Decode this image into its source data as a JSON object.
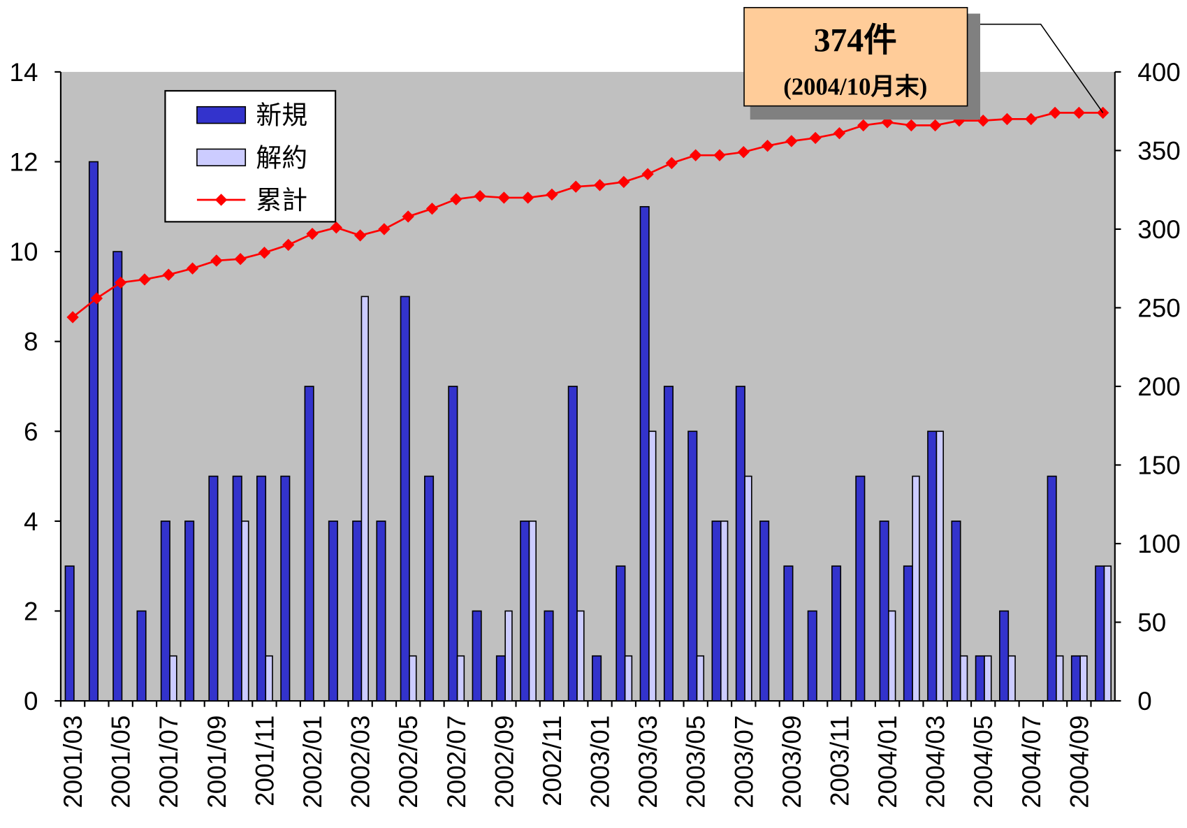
{
  "chart_data": {
    "type": "bar_line",
    "categories": [
      "2001/03",
      null,
      "2001/05",
      null,
      "2001/07",
      null,
      "2001/09",
      null,
      "2001/11",
      null,
      "2002/01",
      null,
      "2002/03",
      null,
      "2002/05",
      null,
      "2002/07",
      null,
      "2002/09",
      null,
      "2002/11",
      null,
      "2003/01",
      null,
      "2003/03",
      null,
      "2003/05",
      null,
      "2003/07",
      null,
      "2003/09",
      null,
      "2003/11",
      null,
      "2004/01",
      null,
      "2004/03",
      null,
      "2004/05",
      null,
      "2004/07",
      null,
      "2004/09",
      null
    ],
    "series": [
      {
        "name": "新規",
        "color": "#3333cc",
        "type": "bar",
        "values": [
          3,
          12,
          10,
          2,
          4,
          4,
          5,
          5,
          5,
          5,
          7,
          4,
          4,
          4,
          9,
          5,
          7,
          2,
          1,
          4,
          2,
          7,
          1,
          3,
          11,
          7,
          6,
          4,
          7,
          4,
          3,
          2,
          3,
          5,
          4,
          3,
          6,
          4,
          1,
          2,
          0,
          5,
          1,
          3
        ]
      },
      {
        "name": "解約",
        "color": "#ccccff",
        "type": "bar",
        "values": [
          0,
          0,
          0,
          0,
          1,
          0,
          0,
          4,
          1,
          0,
          0,
          0,
          9,
          0,
          1,
          0,
          1,
          0,
          2,
          4,
          0,
          2,
          0,
          1,
          6,
          0,
          1,
          4,
          5,
          0,
          0,
          0,
          0,
          0,
          2,
          5,
          6,
          1,
          1,
          1,
          0,
          1,
          1,
          3
        ]
      },
      {
        "name": "累計",
        "color": "#ff0000",
        "type": "line",
        "axis": "y2",
        "values": [
          244,
          256,
          266,
          268,
          271,
          275,
          280,
          281,
          285,
          290,
          297,
          301,
          296,
          300,
          308,
          313,
          319,
          321,
          320,
          320,
          322,
          327,
          328,
          330,
          335,
          342,
          347,
          347,
          349,
          353,
          356,
          358,
          361,
          366,
          368,
          366,
          366,
          369,
          369,
          370,
          370,
          374,
          374,
          374
        ]
      }
    ],
    "ylim": [
      0,
      14
    ],
    "yticks": [
      0,
      2,
      4,
      6,
      8,
      10,
      12,
      14
    ],
    "y2lim": [
      0,
      400
    ],
    "y2ticks": [
      0,
      50,
      100,
      150,
      200,
      250,
      300,
      350,
      400
    ],
    "legend": "upper left",
    "background": "#c0c0c0",
    "annotations": [
      "374件",
      "(2004/10月末)"
    ]
  }
}
